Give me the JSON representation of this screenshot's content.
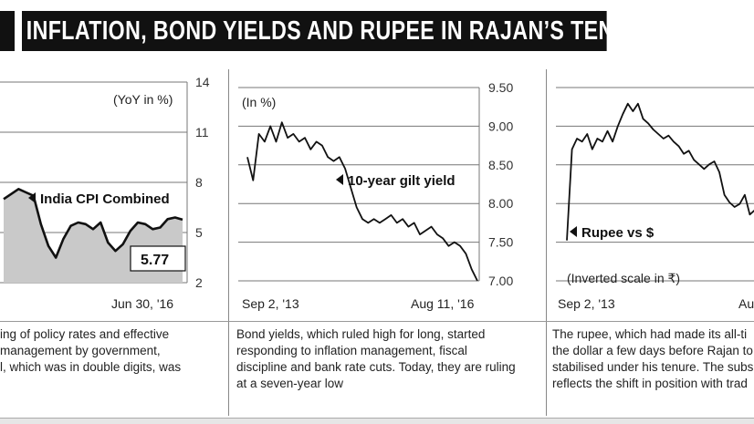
{
  "title": "INFLATION, BOND YIELDS AND RUPEE IN RAJAN’S TENURE SO FAR",
  "chart_data": [
    {
      "type": "area",
      "unit_label": "(YoY in %)",
      "series_label": "India CPI Combined",
      "yticks": [
        "14",
        "11",
        "8",
        "5",
        "2"
      ],
      "ylim": [
        2,
        14
      ],
      "x_end_label": "Jun 30, '16",
      "last_value_label": "5.77",
      "values": [
        7.0,
        7.3,
        7.6,
        7.4,
        7.2,
        5.5,
        4.2,
        3.5,
        4.6,
        5.4,
        5.6,
        5.5,
        5.2,
        5.6,
        4.4,
        3.9,
        4.3,
        5.1,
        5.6,
        5.5,
        5.2,
        5.3,
        5.8,
        5.9,
        5.77
      ],
      "caption": [
        "ing of policy rates and effective",
        "management by government,",
        "l, which was in double digits, was"
      ]
    },
    {
      "type": "line",
      "unit_label": "(In %)",
      "series_label": "10-year gilt yield",
      "yticks": [
        "9.50",
        "9.00",
        "8.50",
        "8.00",
        "7.50",
        "7.00"
      ],
      "ylim": [
        7.0,
        9.5
      ],
      "x_start_label": "Sep 2, '13",
      "x_end_label": "Aug 11, '16",
      "values": [
        8.6,
        8.3,
        8.9,
        8.8,
        9.0,
        8.8,
        9.05,
        8.85,
        8.9,
        8.8,
        8.85,
        8.7,
        8.8,
        8.75,
        8.6,
        8.55,
        8.6,
        8.45,
        8.2,
        7.95,
        7.8,
        7.75,
        7.8,
        7.75,
        7.8,
        7.85,
        7.75,
        7.8,
        7.7,
        7.75,
        7.6,
        7.65,
        7.7,
        7.6,
        7.55,
        7.45,
        7.5,
        7.45,
        7.35,
        7.15,
        7.0
      ],
      "caption": [
        "Bond yields, which ruled high for long, started",
        "responding to inflation management, fiscal",
        "discipline and bank rate cuts. Today, they are ruling",
        "at a seven-year low"
      ]
    },
    {
      "type": "line",
      "series_label": "Rupee vs $",
      "scale_label": "(Inverted scale in ₹)",
      "x_start_label": "Sep 2, '13",
      "x_end_label": "Au",
      "values": [
        68.5,
        62.5,
        61.8,
        62.0,
        61.5,
        62.5,
        61.8,
        62.0,
        61.3,
        62.0,
        61.0,
        60.2,
        59.5,
        60.0,
        59.5,
        60.5,
        60.8,
        61.2,
        61.5,
        61.8,
        61.6,
        62.0,
        62.3,
        62.8,
        62.6,
        63.2,
        63.5,
        63.8,
        63.5,
        63.3,
        64.0,
        65.5,
        66.0,
        66.3,
        66.1,
        65.5,
        66.8,
        66.5
      ],
      "caption": [
        "The rupee, which had made its all-ti",
        "the dollar a few days before Rajan to",
        "stabilised under his tenure. The subs",
        "reflects the shift in position with trad"
      ]
    }
  ]
}
